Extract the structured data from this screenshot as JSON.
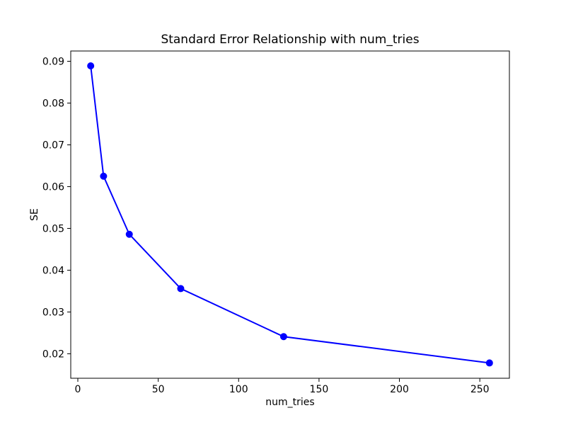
{
  "chart_data": {
    "type": "line",
    "title": "Standard Error Relationship with num_tries",
    "xlabel": "num_tries",
    "ylabel": "SE",
    "x": [
      8,
      16,
      32,
      64,
      128,
      256
    ],
    "y": [
      0.0889,
      0.0625,
      0.0486,
      0.0356,
      0.0241,
      0.0178
    ],
    "xlim": [
      -4.4,
      268.4
    ],
    "ylim": [
      0.01414,
      0.09246
    ],
    "xticks": [
      0,
      50,
      100,
      150,
      200,
      250
    ],
    "xtick_labels": [
      "0",
      "50",
      "100",
      "150",
      "200",
      "250"
    ],
    "yticks": [
      0.02,
      0.03,
      0.04,
      0.05,
      0.06,
      0.07,
      0.08,
      0.09
    ],
    "ytick_labels": [
      "0.02",
      "0.03",
      "0.04",
      "0.05",
      "0.06",
      "0.07",
      "0.08",
      "0.09"
    ],
    "line_color": "#0000ff",
    "marker": "o",
    "grid": false,
    "legend": null,
    "background_color": "#ffffff",
    "spine_color": "#000000",
    "text_color": "#000000"
  }
}
